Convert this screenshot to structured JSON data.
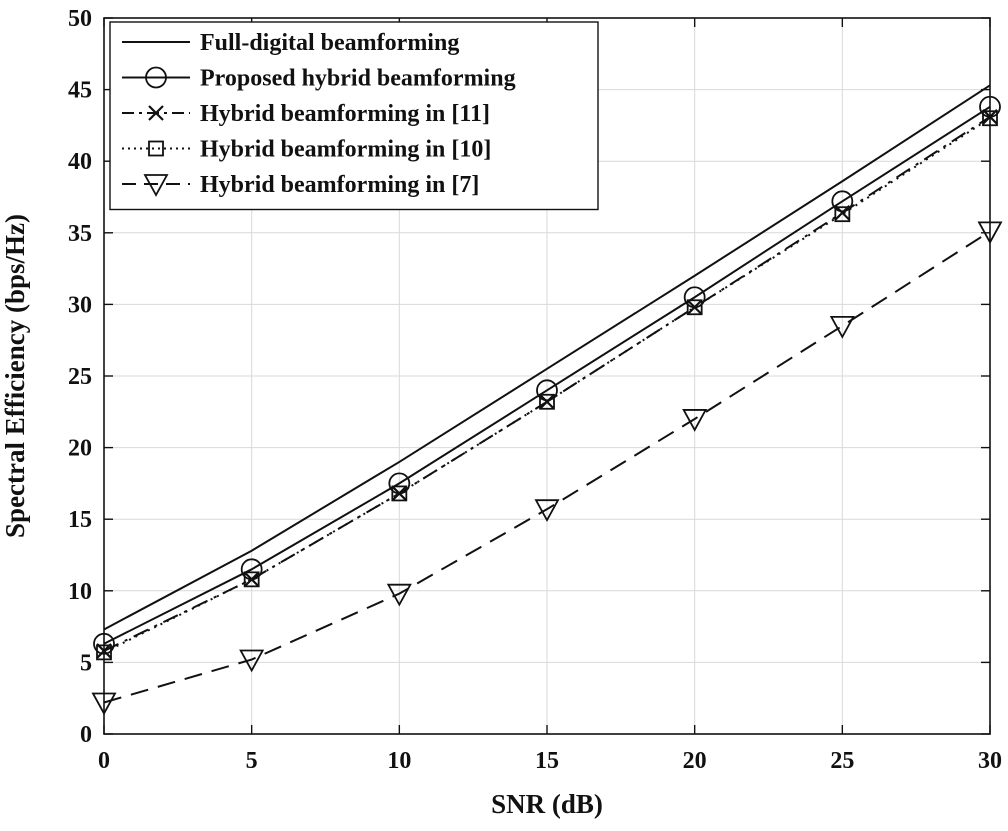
{
  "chart_data": {
    "type": "line",
    "title": "",
    "xlabel": "SNR (dB)",
    "ylabel": "Spectral Efficiency (bps/Hz)",
    "xlim": [
      0,
      30
    ],
    "ylim": [
      0,
      50
    ],
    "xticks": [
      0,
      5,
      10,
      15,
      20,
      25,
      30
    ],
    "yticks": [
      0,
      5,
      10,
      15,
      20,
      25,
      30,
      35,
      40,
      45,
      50
    ],
    "grid": true,
    "legend_position": "top-left",
    "x": [
      0,
      5,
      10,
      15,
      20,
      25,
      30
    ],
    "series": [
      {
        "name": "Full-digital beamforming",
        "line_style": "solid",
        "marker": "none",
        "color": "#111111",
        "values": [
          7.3,
          12.8,
          19.0,
          25.5,
          32.0,
          38.6,
          45.3
        ]
      },
      {
        "name": "Proposed hybrid beamforming",
        "line_style": "solid",
        "marker": "circle",
        "color": "#111111",
        "values": [
          6.3,
          11.5,
          17.5,
          24.0,
          30.5,
          37.2,
          43.8
        ]
      },
      {
        "name": "Hybrid beamforming in [11]",
        "line_style": "dashdot",
        "marker": "x",
        "color": "#111111",
        "values": [
          5.8,
          10.8,
          16.8,
          23.2,
          29.8,
          36.4,
          43.1
        ]
      },
      {
        "name": "Hybrid beamforming in [10]",
        "line_style": "dotted",
        "marker": "square",
        "color": "#111111",
        "values": [
          5.7,
          10.8,
          16.8,
          23.2,
          29.8,
          36.3,
          43.0
        ]
      },
      {
        "name": "Hybrid beamforming in [7]",
        "line_style": "dashed",
        "marker": "triangle-down",
        "color": "#111111",
        "values": [
          2.2,
          5.2,
          9.8,
          15.7,
          22.0,
          28.5,
          35.1
        ]
      }
    ]
  }
}
